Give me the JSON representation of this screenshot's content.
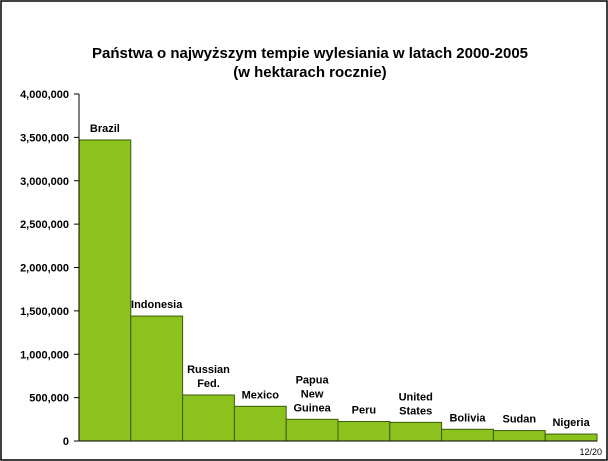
{
  "chart_data": {
    "type": "bar",
    "title": [
      "Państwa o najwyższym tempie wylesiania w latach 2000-2005",
      "(w hektarach rocznie)"
    ],
    "categories": [
      [
        "Brazil"
      ],
      [
        "Indonesia"
      ],
      [
        "Russian",
        "Fed."
      ],
      [
        "Mexico"
      ],
      [
        "Papua",
        "New",
        "Guinea"
      ],
      [
        "Peru"
      ],
      [
        "United",
        "States"
      ],
      [
        "Bolivia"
      ],
      [
        "Sudan"
      ],
      [
        "Nigeria"
      ]
    ],
    "values": [
      3470000,
      1440000,
      530000,
      400000,
      250000,
      225000,
      215000,
      135000,
      120000,
      80000
    ],
    "color": "#8cc21e",
    "ylim": [
      0,
      4000000
    ],
    "yticks": [
      0,
      {
        "value": 500000,
        "label": "500,000"
      },
      {
        "value": 1000000,
        "label": "1,000,000"
      },
      {
        "value": 1500000,
        "label": "1,500,000"
      },
      {
        "value": 2000000,
        "label": "2,000,000"
      },
      {
        "value": 2500000,
        "label": "2,500,000"
      },
      {
        "value": 3000000,
        "label": "3,000,000"
      },
      {
        "value": 3500000,
        "label": "3,500,000"
      },
      {
        "value": 4000000,
        "label": "4,000,000"
      }
    ],
    "grid": false
  },
  "page_number": "12/20"
}
